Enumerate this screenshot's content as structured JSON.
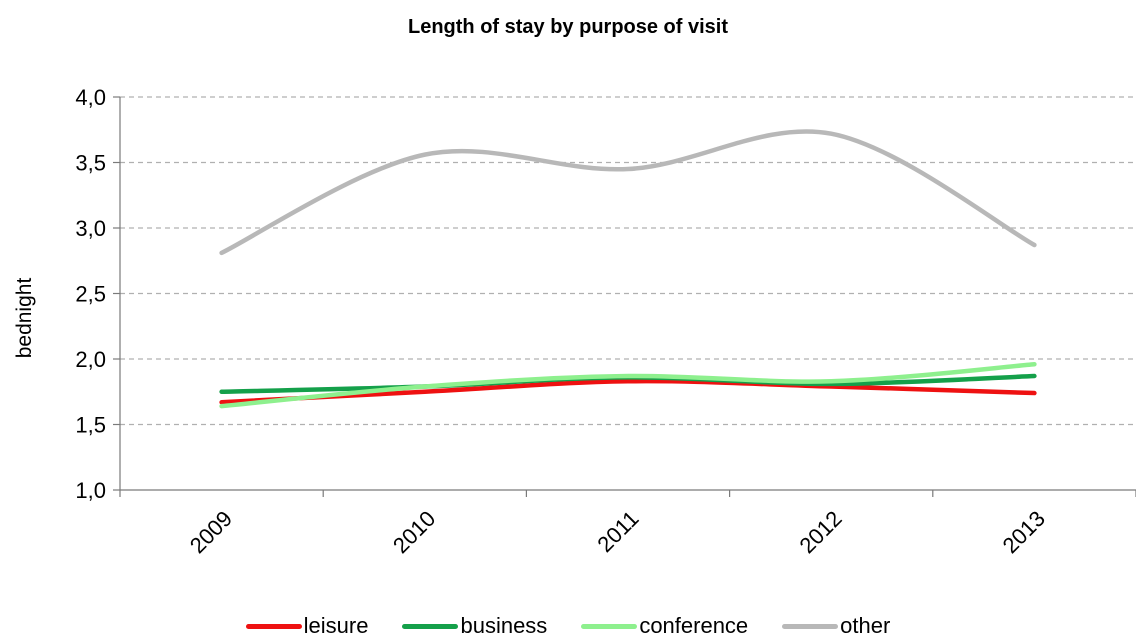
{
  "chart_data": {
    "type": "line",
    "title": "Length of stay  by purpose of visit",
    "xlabel": "",
    "ylabel": "bednight",
    "categories": [
      "2009",
      "2010",
      "2011",
      "2012",
      "2013"
    ],
    "y_ticks": [
      "1,0",
      "1,5",
      "2,0",
      "2,5",
      "3,0",
      "3,5",
      "4,0"
    ],
    "ylim": [
      1.0,
      4.0
    ],
    "grid": "horizontal dashed",
    "legend_position": "bottom",
    "smoothed": true,
    "series": [
      {
        "name": "leisure",
        "color": "#ee1111",
        "values": [
          1.67,
          1.75,
          1.83,
          1.79,
          1.74
        ]
      },
      {
        "name": "business",
        "color": "#14a04a",
        "values": [
          1.75,
          1.79,
          1.86,
          1.81,
          1.87
        ]
      },
      {
        "name": "conference",
        "color": "#8ef08e",
        "values": [
          1.64,
          1.79,
          1.87,
          1.83,
          1.96
        ]
      },
      {
        "name": "other",
        "color": "#b8b8b8",
        "values": [
          2.81,
          3.56,
          3.45,
          3.72,
          2.87
        ]
      }
    ]
  }
}
